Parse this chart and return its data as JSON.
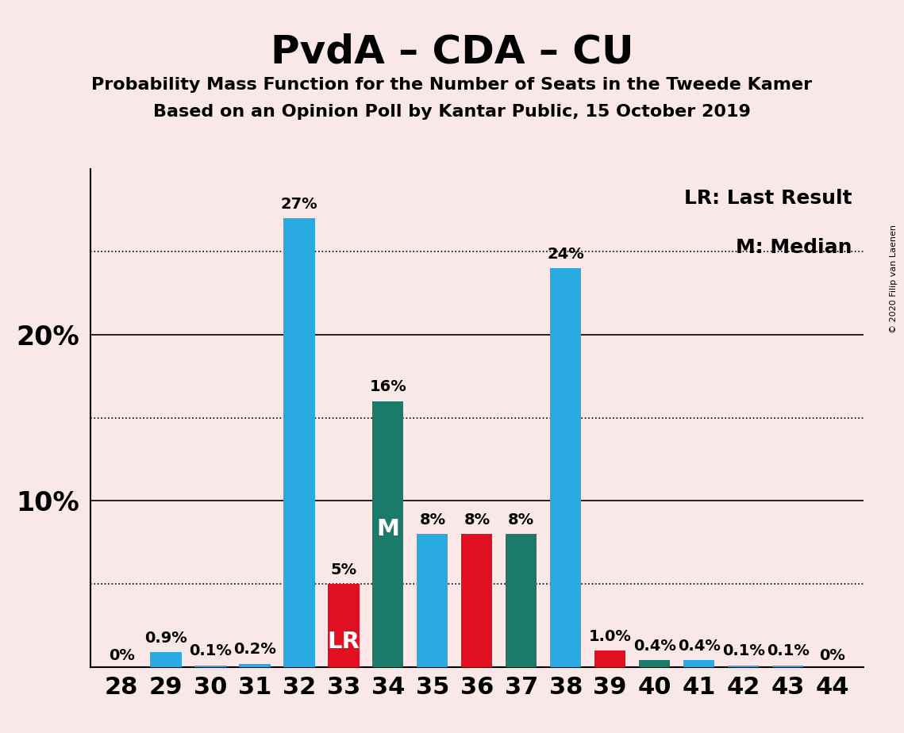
{
  "title": "PvdA – CDA – CU",
  "subtitle1": "Probability Mass Function for the Number of Seats in the Tweede Kamer",
  "subtitle2": "Based on an Opinion Poll by Kantar Public, 15 October 2019",
  "copyright_text": "© 2020 Filip van Laenen",
  "legend_lr": "LR: Last Result",
  "legend_m": "M: Median",
  "background_color": "#FAE8E8",
  "seats": [
    28,
    29,
    30,
    31,
    32,
    33,
    34,
    35,
    36,
    37,
    38,
    39,
    40,
    41,
    42,
    43,
    44
  ],
  "probabilities": [
    0.0,
    0.9,
    0.1,
    0.2,
    27.0,
    5.0,
    16.0,
    8.0,
    8.0,
    8.0,
    24.0,
    1.0,
    0.4,
    0.4,
    0.1,
    0.1,
    0.0
  ],
  "labels": [
    "0%",
    "0.9%",
    "0.1%",
    "0.2%",
    "27%",
    "5%",
    "16%",
    "8%",
    "8%",
    "8%",
    "24%",
    "1.0%",
    "0.4%",
    "0.4%",
    "0.1%",
    "0.1%",
    "0%"
  ],
  "bar_colors": [
    "#29ABE2",
    "#29ABE2",
    "#29ABE2",
    "#29ABE2",
    "#29ABE2",
    "#E01020",
    "#1B7B6A",
    "#29ABE2",
    "#E01020",
    "#1B7B6A",
    "#29ABE2",
    "#E01020",
    "#1B7B6A",
    "#29ABE2",
    "#29ABE2",
    "#29ABE2",
    "#29ABE2"
  ],
  "lr_seat": 33,
  "median_seat": 34,
  "ylim": [
    0,
    30
  ],
  "solid_yticks": [
    10,
    20
  ],
  "dotted_yticks": [
    5,
    15,
    25
  ],
  "ytick_labels_solid": [
    [
      10,
      "10%"
    ],
    [
      20,
      "20%"
    ]
  ],
  "title_fontsize": 36,
  "subtitle_fontsize": 16,
  "axis_fontsize": 22,
  "bar_label_fontsize": 14,
  "legend_fontsize": 18
}
